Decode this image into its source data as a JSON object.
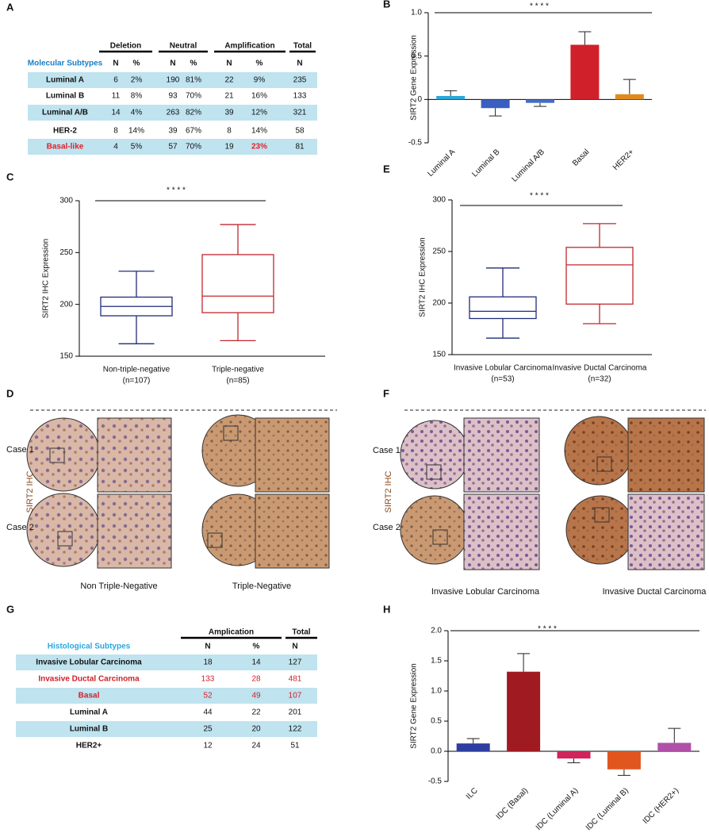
{
  "panel_labels": [
    "A",
    "B",
    "C",
    "D",
    "E",
    "F",
    "G",
    "H"
  ],
  "table_a": {
    "group_headers": [
      "Deletion",
      "Neutral",
      "Amplification",
      "Total"
    ],
    "row_header": "Molecular Subtypes",
    "sub_headers": [
      "N",
      "%",
      "N",
      "%",
      "N",
      "%",
      "N"
    ],
    "rows": [
      [
        "Luminal A",
        "6",
        "2%",
        "190",
        "81%",
        "22",
        "9%",
        "235"
      ],
      [
        "Luminal B",
        "11",
        "8%",
        "93",
        "70%",
        "21",
        "16%",
        "133"
      ],
      [
        "Luminal A/B",
        "14",
        "4%",
        "263",
        "82%",
        "39",
        "12%",
        "321"
      ],
      [
        "HER-2",
        "8",
        "14%",
        "39",
        "67%",
        "8",
        "14%",
        "58"
      ],
      [
        "Basal-like",
        "4",
        "5%",
        "57",
        "70%",
        "19",
        "23%",
        "81"
      ]
    ]
  },
  "table_g": {
    "group_headers": [
      "Amplication",
      "Total"
    ],
    "row_header": "Histological Subtypes",
    "sub_headers": [
      "N",
      "%",
      "N"
    ],
    "rows": [
      [
        "Invasive Lobular Carcinoma",
        "18",
        "14",
        "127"
      ],
      [
        "Invasive Ductal Carcinoma",
        "133",
        "28",
        "481"
      ],
      [
        "Basal",
        "52",
        "49",
        "107"
      ],
      [
        "Luminal A",
        "44",
        "22",
        "201"
      ],
      [
        "Luminal B",
        "25",
        "20",
        "122"
      ],
      [
        "HER2+",
        "12",
        "24",
        "51"
      ]
    ]
  },
  "ihc_d": {
    "stain_label": "SIRT2 IHC",
    "cases": [
      "Case 1",
      "Case 2"
    ],
    "groups": [
      "Non Triple-Negative",
      "Triple-Negative"
    ]
  },
  "ihc_f": {
    "stain_label": "SIRT2 IHC",
    "cases": [
      "Case 1",
      "Case 2"
    ],
    "groups": [
      "Invasive Lobular Carcinoma",
      "Invasive Ductal Carcinoma"
    ]
  },
  "chart_data": [
    {
      "type": "bar",
      "ylabel": "SIRT2 Gene Expression",
      "annotation": "* * * *",
      "categories": [
        "Luminal A",
        "Luminal B",
        "Luminal A/B",
        "Basal",
        "HER2+"
      ],
      "values": [
        0.04,
        -0.1,
        -0.04,
        0.63,
        0.06
      ],
      "errors": [
        0.06,
        0.09,
        0.04,
        0.15,
        0.17
      ],
      "colors": [
        "#2aa8d8",
        "#3a5fc0",
        "#4a6cc8",
        "#d0202a",
        "#e08a1e"
      ],
      "ylim": [
        -0.5,
        1
      ],
      "yticks": [
        -0.5,
        0,
        0.5,
        {
          "value": 1,
          "label": "1.0"
        }
      ]
    },
    {
      "type": "box",
      "ylabel": "SIRT2 IHC Expression",
      "annotation": "* * * *",
      "categories": [
        "Non-triple-negative",
        "Triple-negative"
      ],
      "n_labels": [
        "(n=107)",
        "(n=85)"
      ],
      "boxes": [
        {
          "min": 162,
          "q1": 189,
          "median": 198,
          "q3": 207,
          "max": 232
        },
        {
          "min": 165,
          "q1": 192,
          "median": 208,
          "q3": 248,
          "max": 277
        }
      ],
      "colors": [
        "#1f2d7a",
        "#c0282e"
      ],
      "ylim": [
        150,
        300
      ],
      "yticks": [
        150,
        200,
        250,
        300
      ]
    },
    {
      "type": "box",
      "ylabel": "SIRT2 IHC Expression",
      "annotation": "* * * *",
      "categories": [
        "Invasive Lobular Carcinoma",
        "Invasive Ductal Carcinoma"
      ],
      "n_labels": [
        "(n=53)",
        "(n=32)"
      ],
      "boxes": [
        {
          "min": 166,
          "q1": 185,
          "median": 192,
          "q3": 206,
          "max": 234
        },
        {
          "min": 180,
          "q1": 199,
          "median": 237,
          "q3": 254,
          "max": 277
        }
      ],
      "colors": [
        "#1f2d7a",
        "#c0282e"
      ],
      "ylim": [
        150,
        300
      ],
      "yticks": [
        150,
        200,
        250,
        300
      ]
    },
    {
      "type": "bar",
      "ylabel": "SIRT2 Gene Expression",
      "annotation": "* * * *",
      "categories": [
        "ILC",
        "IDC (Basal)",
        "IDC (Luminal A)",
        "IDC (Luminal B)",
        "IDC (HER2+)"
      ],
      "values": [
        0.13,
        1.32,
        -0.12,
        -0.3,
        0.14
      ],
      "errors": [
        0.08,
        0.3,
        0.07,
        0.1,
        0.24
      ],
      "colors": [
        "#2d3ea0",
        "#a01a22",
        "#d0245a",
        "#e0561e",
        "#b050a8"
      ],
      "ylim": [
        -0.5,
        2
      ],
      "yticks": [
        -0.5,
        {
          "value": 0,
          "label": "0.0"
        },
        0.5,
        {
          "value": 1,
          "label": "1.0"
        },
        1.5,
        {
          "value": 2,
          "label": "2.0"
        }
      ]
    }
  ]
}
